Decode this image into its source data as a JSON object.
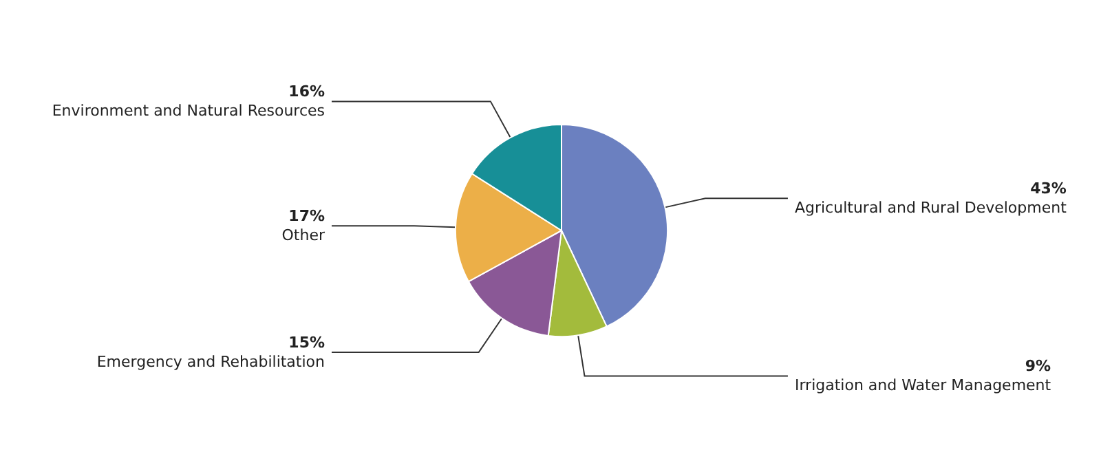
{
  "chart_data": {
    "type": "pie",
    "categories": [
      "Agricultural and Rural Development",
      "Irrigation and Water Management",
      "Emergency and Rehabilitation",
      "Other",
      "Environment and Natural Resources"
    ],
    "values": [
      43,
      9,
      15,
      17,
      16
    ],
    "value_labels": [
      "43%",
      "9%",
      "15%",
      "17%",
      "16%"
    ],
    "colors": [
      "#6b80c0",
      "#a3bb3c",
      "#8a5896",
      "#ecaf48",
      "#178f97"
    ],
    "legend": false
  }
}
